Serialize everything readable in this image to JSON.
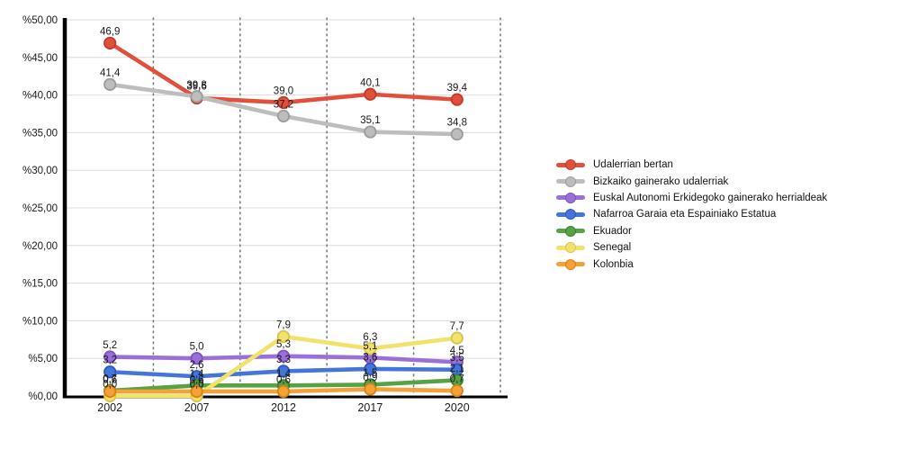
{
  "page": {
    "background": "#ffffff",
    "text_color": "#1a1a1a"
  },
  "chart_data": {
    "type": "line",
    "title": "",
    "xlabel": "",
    "ylabel": "",
    "categories": [
      "2002",
      "2007",
      "2012",
      "2017",
      "2020"
    ],
    "series": [
      {
        "name": "Udalerrian bertan",
        "color": "#E0503C",
        "stroke": "#C43A28",
        "values": [
          46.9,
          39.6,
          39.0,
          40.1,
          39.4
        ],
        "labels": [
          "46,9",
          "39,6",
          "39,0",
          "40,1",
          "39,4"
        ]
      },
      {
        "name": "Bizkaiko gainerako udalerriak",
        "color": "#BDBDBD",
        "stroke": "#9C9C9C",
        "values": [
          41.4,
          39.8,
          37.2,
          35.1,
          34.8
        ],
        "labels": [
          "41,4",
          "39,8",
          "37,2",
          "35,1",
          "34,8"
        ]
      },
      {
        "name": "Euskal Autonomi Erkidegoko gainerako herrialdeak",
        "color": "#9B6FD8",
        "stroke": "#7D53BE",
        "values": [
          5.2,
          5.0,
          5.3,
          5.1,
          4.5
        ],
        "labels": [
          "5,2",
          "5,0",
          "5,3",
          "5,1",
          "4,5"
        ]
      },
      {
        "name": "Nafarroa Garaia eta Espainiako Estatua",
        "color": "#4476D9",
        "stroke": "#2E59B8",
        "values": [
          3.2,
          2.6,
          3.3,
          3.6,
          3.5
        ],
        "labels": [
          "3,2",
          "2,6",
          "3,3",
          "3,6",
          "3,5"
        ]
      },
      {
        "name": "Ekuador",
        "color": "#57A244",
        "stroke": "#3E7F2F",
        "values": [
          0.7,
          1.4,
          1.4,
          1.5,
          2.1
        ],
        "labels": [
          "0,7",
          "1,4",
          "1,4",
          "1,5",
          "2,1"
        ]
      },
      {
        "name": "Senegal",
        "color": "#F1E26B",
        "stroke": "#D8C44D",
        "values": [
          0.0,
          0.0,
          7.9,
          6.3,
          7.7
        ],
        "labels": [
          "0,0",
          "0,0",
          "7,9",
          "6,3",
          "7,7"
        ]
      },
      {
        "name": "Kolonbia",
        "color": "#F4A237",
        "stroke": "#D8830F",
        "values": [
          0.6,
          0.6,
          0.6,
          0.9,
          0.7
        ],
        "labels": [
          "0,6",
          "0,6",
          "0,6",
          "0,9",
          "0,7"
        ]
      }
    ],
    "ylim": [
      0,
      50
    ],
    "ytick_step": 5,
    "ytick_labels": [
      "%0,00",
      "%5,00",
      "%10,00",
      "%15,00",
      "%20,00",
      "%25,00",
      "%30,00",
      "%35,00",
      "%40,00",
      "%45,00",
      "%50,00"
    ],
    "grid": true,
    "gridline_color": "#DCDCDC",
    "category_divider_color": "#7A7A7A",
    "axis_color": "#000000",
    "legend_position": "right"
  }
}
